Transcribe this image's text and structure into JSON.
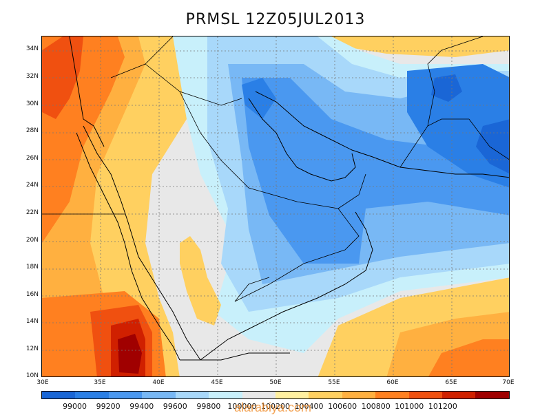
{
  "title": "PRMSL 12Z05JUL2013",
  "lat_labels": [
    "34N",
    "32N",
    "30N",
    "28N",
    "26N",
    "24N",
    "22N",
    "20N",
    "18N",
    "16N",
    "14N",
    "12N",
    "10N"
  ],
  "lon_labels": [
    "30E",
    "35E",
    "40E",
    "45E",
    "50E",
    "55E",
    "60E",
    "65E",
    "70E"
  ],
  "colorbar": {
    "colors": [
      "#1a66d6",
      "#2a7fe6",
      "#4a98f0",
      "#78b8f5",
      "#a8d8fa",
      "#c8f0fb",
      "#e8e8e8",
      "#fff0a0",
      "#ffd060",
      "#ffb040",
      "#ff8020",
      "#f05010",
      "#d02000",
      "#a00000"
    ],
    "labels": [
      "99000",
      "99200",
      "99400",
      "99600",
      "99800",
      "100000",
      "100200",
      "100400",
      "100600",
      "100800",
      "101000",
      "101200"
    ]
  },
  "watermark": "alarabiya.com"
}
